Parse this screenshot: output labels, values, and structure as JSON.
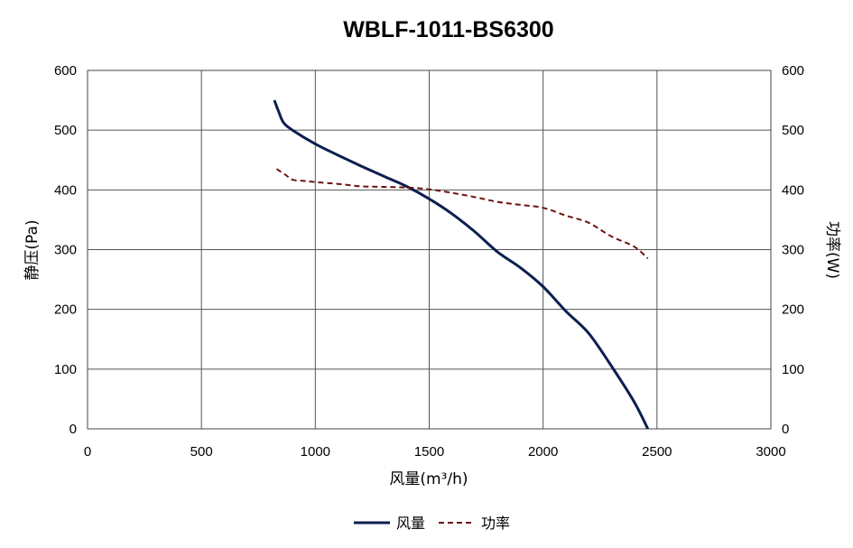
{
  "chart_data": {
    "type": "line",
    "title": "WBLF-1011-BS6300",
    "xlabel": "风量(m³/h)",
    "ylabel_left": "静压(Pa)",
    "ylabel_right": "功率(W)",
    "xlim": [
      0,
      3000
    ],
    "ylim_left": [
      0,
      600
    ],
    "ylim_right": [
      0,
      600
    ],
    "x_ticks": [
      "0",
      "500",
      "1000",
      "1500",
      "2000",
      "2500",
      "3000"
    ],
    "y_ticks_left": [
      "0",
      "100",
      "200",
      "300",
      "400",
      "500",
      "600"
    ],
    "y_ticks_right": [
      "0",
      "100",
      "200",
      "300",
      "400",
      "500",
      "600"
    ],
    "grid": true,
    "legend_position": "bottom",
    "series": [
      {
        "name": "风量",
        "axis": "left",
        "color": "#0b1f4f",
        "style": "solid",
        "x": [
          820,
          840,
          860,
          900,
          1000,
          1100,
          1200,
          1300,
          1400,
          1500,
          1600,
          1700,
          1800,
          1900,
          2000,
          2100,
          2200,
          2300,
          2400,
          2460
        ],
        "y": [
          550,
          530,
          513,
          500,
          477,
          458,
          440,
          423,
          406,
          385,
          360,
          330,
          296,
          270,
          238,
          197,
          160,
          105,
          45,
          0
        ]
      },
      {
        "name": "功率",
        "axis": "right",
        "color": "#6b1410",
        "style": "dashed",
        "x": [
          830,
          870,
          900,
          950,
          1000,
          1100,
          1200,
          1300,
          1400,
          1500,
          1600,
          1700,
          1800,
          1900,
          2000,
          2100,
          2200,
          2300,
          2400,
          2460
        ],
        "y": [
          435,
          425,
          417,
          415,
          413,
          410,
          406,
          405,
          404,
          401,
          395,
          388,
          380,
          375,
          370,
          357,
          345,
          322,
          305,
          285
        ]
      }
    ]
  }
}
